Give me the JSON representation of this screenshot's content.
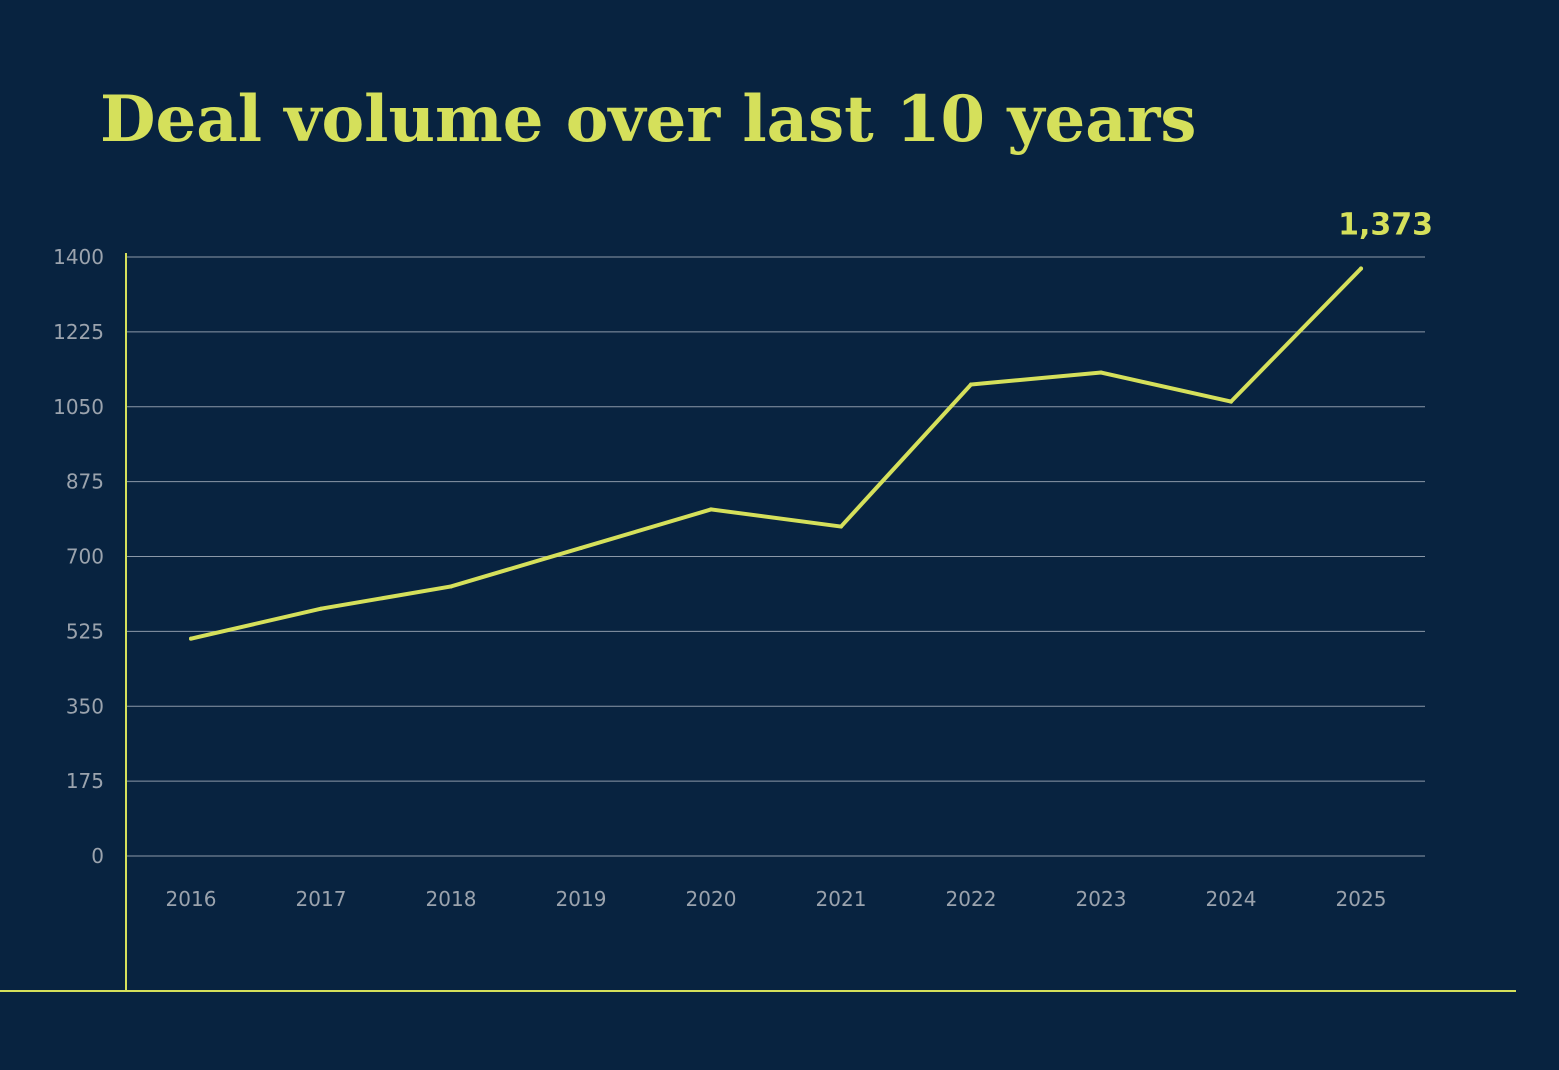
{
  "colors": {
    "background": "#082340",
    "accent": "#d5e05b",
    "gridline": "#8b98a8",
    "tick_text": "#9ba3ad"
  },
  "chart_data": {
    "type": "line",
    "title": "Deal volume over last 10 years",
    "xlabel": "",
    "ylabel": "",
    "x": [
      "2016",
      "2017",
      "2018",
      "2019",
      "2020",
      "2021",
      "2022",
      "2023",
      "2024",
      "2025"
    ],
    "series": [
      {
        "values": [
          508,
          578,
          630,
          720,
          810,
          770,
          1102,
          1130,
          1062,
          1373
        ]
      }
    ],
    "ylim": [
      0,
      1400
    ],
    "yticks": [
      0,
      175,
      350,
      525,
      700,
      875,
      1050,
      1225,
      1400
    ],
    "ytick_labels": [
      "0",
      "175",
      "350",
      "525",
      "700",
      "875",
      "1050",
      "1225",
      "1400"
    ],
    "grid": true,
    "legend": "none",
    "annotations": [
      {
        "x": "2025",
        "text": "1,373"
      }
    ]
  }
}
